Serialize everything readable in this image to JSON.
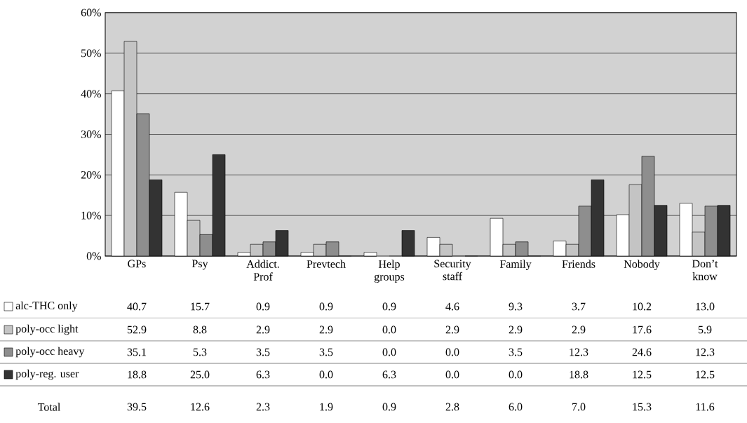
{
  "chart_data": {
    "type": "bar",
    "categories": [
      "GPs",
      "Psy",
      "Addict. Prof",
      "Prevtech",
      "Help groups",
      "Security staff",
      "Family",
      "Friends",
      "Nobody",
      "Don’t know"
    ],
    "series": [
      {
        "name": "alc-THC only",
        "color": "#ffffff",
        "values": [
          40.7,
          15.7,
          0.9,
          0.9,
          0.9,
          4.6,
          9.3,
          3.7,
          10.2,
          13.0
        ],
        "value_labels": [
          "40.7",
          "15.7",
          "0.9",
          "0.9",
          "0.9",
          "4.6",
          "9.3",
          "3.7",
          "10.2",
          "13.0"
        ]
      },
      {
        "name": "poly-occ light",
        "color": "#c4c4c4",
        "values": [
          52.9,
          8.8,
          2.9,
          2.9,
          0.0,
          2.9,
          2.9,
          2.9,
          17.6,
          5.9
        ],
        "value_labels": [
          "52.9",
          "8.8",
          "2.9",
          "2.9",
          "0.0",
          "2.9",
          "2.9",
          "2.9",
          "17.6",
          "5.9"
        ]
      },
      {
        "name": "poly-occ heavy",
        "color": "#8e8e8e",
        "values": [
          35.1,
          5.3,
          3.5,
          3.5,
          0.0,
          0.0,
          3.5,
          12.3,
          24.6,
          12.3
        ],
        "value_labels": [
          "35.1",
          "5.3",
          "3.5",
          "3.5",
          "0.0",
          "0.0",
          "3.5",
          "12.3",
          "24.6",
          "12.3"
        ]
      },
      {
        "name": "poly-reg. user",
        "color": "#333333",
        "values": [
          18.8,
          25.0,
          6.3,
          0.0,
          6.3,
          0.0,
          0.0,
          18.8,
          12.5,
          12.5
        ],
        "value_labels": [
          "18.8",
          "25.0",
          "6.3",
          "0.0",
          "6.3",
          "0.0",
          "0.0",
          "18.8",
          "12.5",
          "12.5"
        ]
      }
    ],
    "annotations": [
      "Total",
      "39.5",
      "12.6",
      "2.3",
      "1.9",
      "0.9",
      "2.8",
      "6.0",
      "7.0",
      "15.3",
      "11.6"
    ],
    "ylim": [
      0,
      60
    ],
    "yticks": [
      {
        "value": 0,
        "label": "0%"
      },
      {
        "value": 10,
        "label": "10%"
      },
      {
        "value": 20,
        "label": "20%"
      },
      {
        "value": 30,
        "label": "30%"
      },
      {
        "value": 40,
        "label": "40%"
      },
      {
        "value": 50,
        "label": "50%"
      },
      {
        "value": 60,
        "label": "60%"
      }
    ],
    "grid": "y",
    "legend": "bottom left"
  }
}
